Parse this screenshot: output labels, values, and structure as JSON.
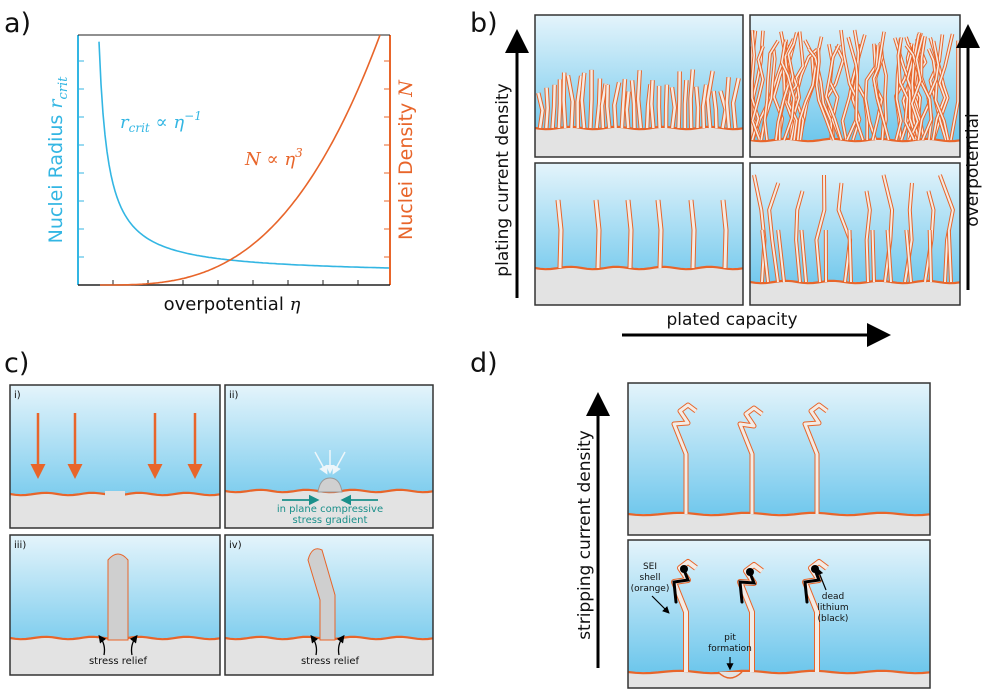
{
  "panel_a": {
    "label": "a)",
    "left_axis": {
      "text": "Nuclei Radius ",
      "var": "r",
      "sub": "crit"
    },
    "right_axis": {
      "text": "Nuclei Density ",
      "var": "N"
    },
    "blue_annotation": {
      "var": "r",
      "sub": "crit",
      "rel": " ∝ η",
      "sup": "−1"
    },
    "orange_annotation": {
      "text": "N ∝ η",
      "sup": "3"
    },
    "x_axis": {
      "text": "overpotential ",
      "var": "η"
    }
  },
  "panel_b": {
    "label": "b)",
    "y_arrow": "plating current density",
    "right_arrow": "overpotential",
    "x_arrow": "plated capacity"
  },
  "panel_c": {
    "label": "c)",
    "subpanels": [
      "i)",
      "ii)",
      "iii)",
      "iv)"
    ],
    "stress_gradient": [
      "in plane compressive",
      "stress gradient"
    ],
    "stress_relief": [
      "stress relief",
      "stress relief"
    ]
  },
  "panel_d": {
    "label": "d)",
    "y_arrow": "stripping current density",
    "sei": [
      "SEI",
      "shell",
      "(orange)"
    ],
    "pit": [
      "pit",
      "formation"
    ],
    "dead": [
      "dead",
      "lithium",
      "(black)"
    ]
  }
}
